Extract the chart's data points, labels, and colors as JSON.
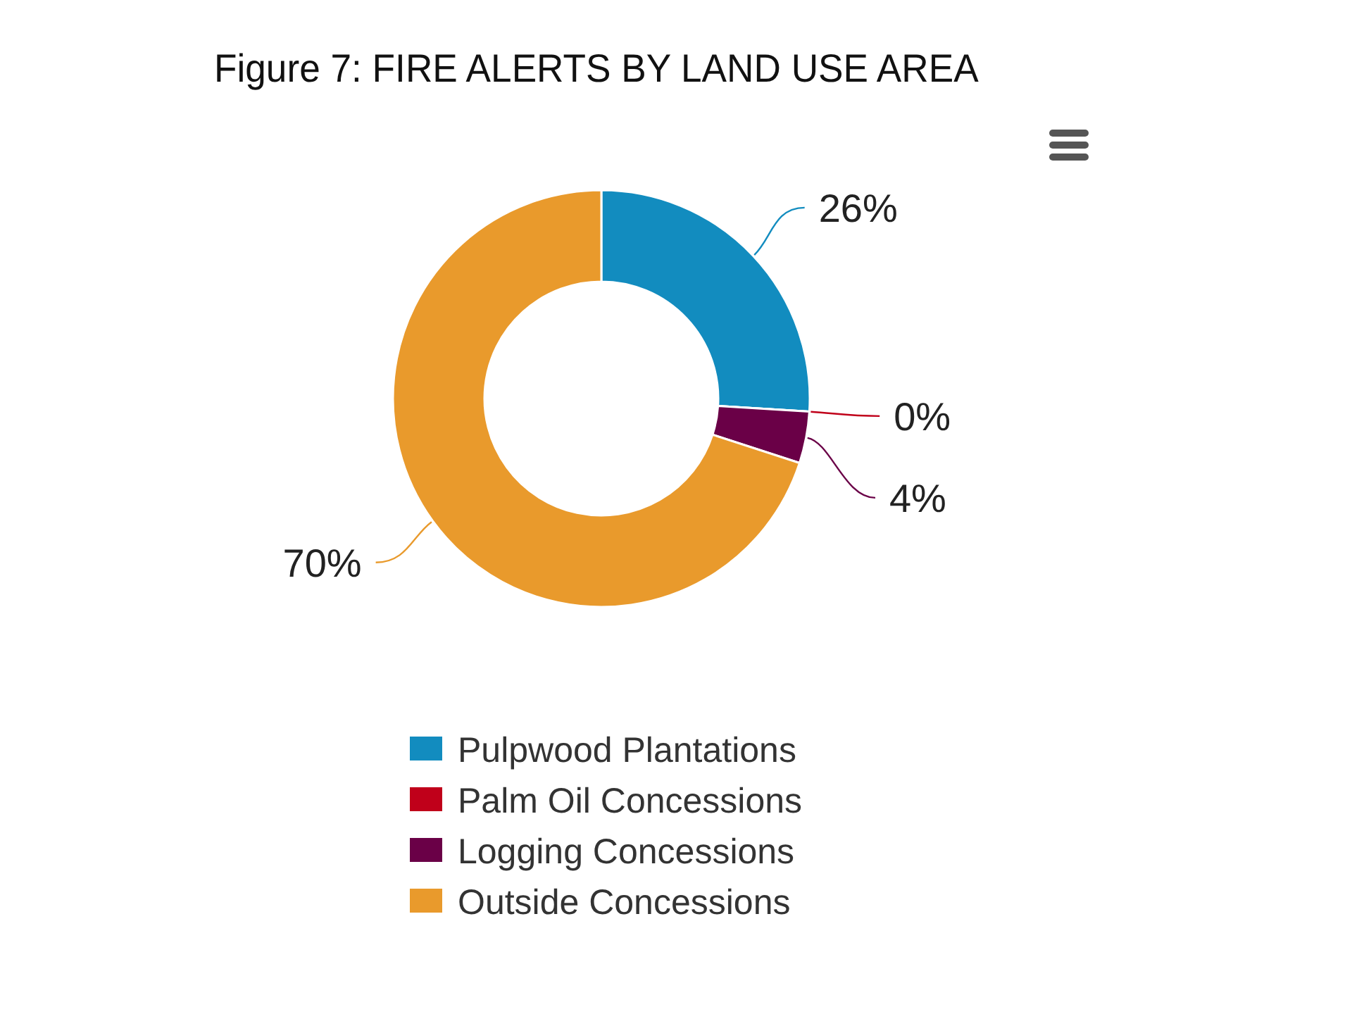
{
  "chart_data": {
    "type": "donut",
    "title": "Figure 7: FIRE ALERTS BY LAND USE AREA",
    "categories": [
      "Pulpwood Plantations",
      "Palm Oil Concessions",
      "Logging Concessions",
      "Outside Concessions"
    ],
    "values": [
      26,
      0,
      4,
      70
    ],
    "colors": [
      "#128cbf",
      "#c0001a",
      "#6a0047",
      "#e99a2c"
    ],
    "value_labels": [
      "26%",
      "0%",
      "4%",
      "70%"
    ],
    "legend": "bottom"
  }
}
